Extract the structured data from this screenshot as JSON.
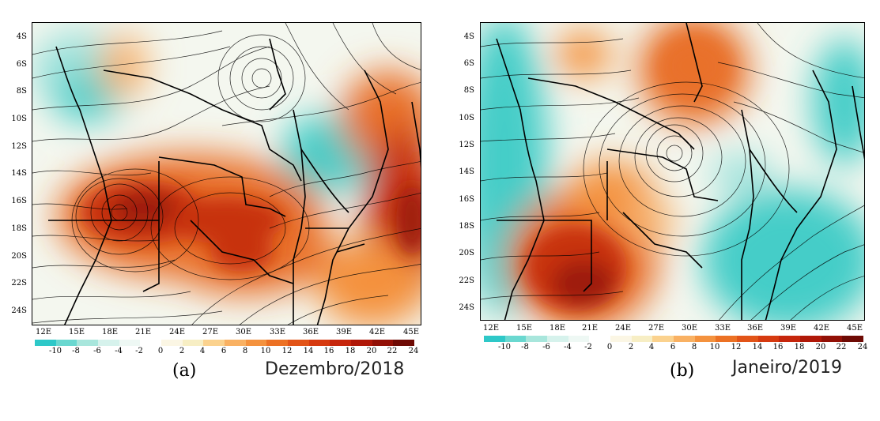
{
  "panels": [
    {
      "id": "a",
      "panel_label": "(a)",
      "month_label": "Dezembro/2018",
      "lat_labels": [
        "4S",
        "6S",
        "8S",
        "10S",
        "12S",
        "14S",
        "16S",
        "18S",
        "20S",
        "22S",
        "24S"
      ],
      "lon_labels": [
        "12E",
        "15E",
        "18E",
        "21E",
        "24E",
        "27E",
        "30E",
        "33E",
        "36E",
        "39E",
        "42E",
        "45E"
      ],
      "colorbar_values": [
        "-10",
        "-8",
        "-6",
        "-4",
        "-2",
        "0",
        "2",
        "4",
        "6",
        "8",
        "10",
        "12",
        "14",
        "16",
        "18",
        "20",
        "22",
        "24"
      ]
    },
    {
      "id": "b",
      "panel_label": "(b)",
      "month_label": "Janeiro/2019",
      "lat_labels": [
        "4S",
        "6S",
        "8S",
        "10S",
        "12S",
        "14S",
        "16S",
        "18S",
        "20S",
        "22S",
        "24S"
      ],
      "lon_labels": [
        "12E",
        "15E",
        "18E",
        "21E",
        "24E",
        "27E",
        "30E",
        "33E",
        "36E",
        "39E",
        "42E",
        "45E"
      ],
      "colorbar_values": [
        "-10",
        "-8",
        "-6",
        "-4",
        "-2",
        "0",
        "2",
        "4",
        "6",
        "8",
        "10",
        "12",
        "14",
        "16",
        "18",
        "20",
        "22",
        "24"
      ]
    }
  ],
  "colorbar_colors": [
    "#2ec8c8",
    "#6ad8d0",
    "#a8e6dc",
    "#d6f2ec",
    "#eef8f4",
    "#ffffff",
    "#fbf6e4",
    "#f7eec4",
    "#fbd28e",
    "#f9b163",
    "#f4923e",
    "#ec7124",
    "#e25418",
    "#d63a10",
    "#c6260c",
    "#b01808",
    "#921006",
    "#6e0a04"
  ],
  "map_colors": {
    "warm_light": "#f7b06a",
    "warm": "#e9712a",
    "warm_dark": "#c7300f",
    "warm_core": "#9e1b0c",
    "cool": "#45cdc8",
    "cool_light": "#9ee2dc",
    "neutral": "#f4f7ef",
    "cream": "#f6eedc",
    "streamline": "#000000",
    "border": "#000000"
  }
}
